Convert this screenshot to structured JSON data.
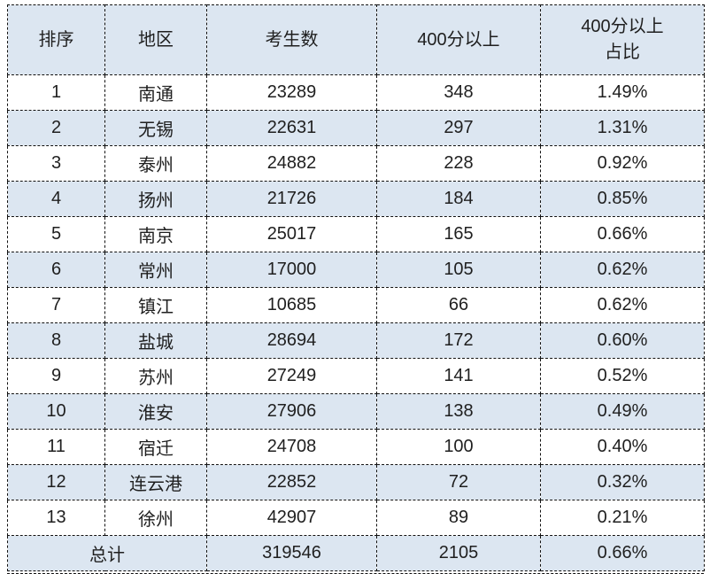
{
  "chart_data": {
    "type": "table",
    "columns": [
      "排序",
      "地区",
      "考生数",
      "400分以上",
      "400分以上\n占比"
    ],
    "rows": [
      [
        "1",
        "南通",
        "23289",
        "348",
        "1.49%"
      ],
      [
        "2",
        "无锡",
        "22631",
        "297",
        "1.31%"
      ],
      [
        "3",
        "泰州",
        "24882",
        "228",
        "0.92%"
      ],
      [
        "4",
        "扬州",
        "21726",
        "184",
        "0.85%"
      ],
      [
        "5",
        "南京",
        "25017",
        "165",
        "0.66%"
      ],
      [
        "6",
        "常州",
        "17000",
        "105",
        "0.62%"
      ],
      [
        "7",
        "镇江",
        "10685",
        "66",
        "0.62%"
      ],
      [
        "8",
        "盐城",
        "28694",
        "172",
        "0.60%"
      ],
      [
        "9",
        "苏州",
        "27249",
        "141",
        "0.52%"
      ],
      [
        "10",
        "淮安",
        "27906",
        "138",
        "0.49%"
      ],
      [
        "11",
        "宿迁",
        "24708",
        "100",
        "0.40%"
      ],
      [
        "12",
        "连云港",
        "22852",
        "72",
        "0.32%"
      ],
      [
        "13",
        "徐州",
        "42907",
        "89",
        "0.21%"
      ]
    ],
    "total_row": {
      "label": "总计",
      "examinees": "319546",
      "above_400": "2105",
      "ratio": "0.66%"
    },
    "layout_hints": {
      "striping": "alternate rows shaded",
      "legend": "none",
      "grid": "dashed black cell borders"
    },
    "colors": {
      "header_bg": "#dce6f1",
      "alt_row_bg": "#dce6f1",
      "row_bg": "#ffffff",
      "border": "#111111",
      "text": "#1f1f1f"
    }
  }
}
